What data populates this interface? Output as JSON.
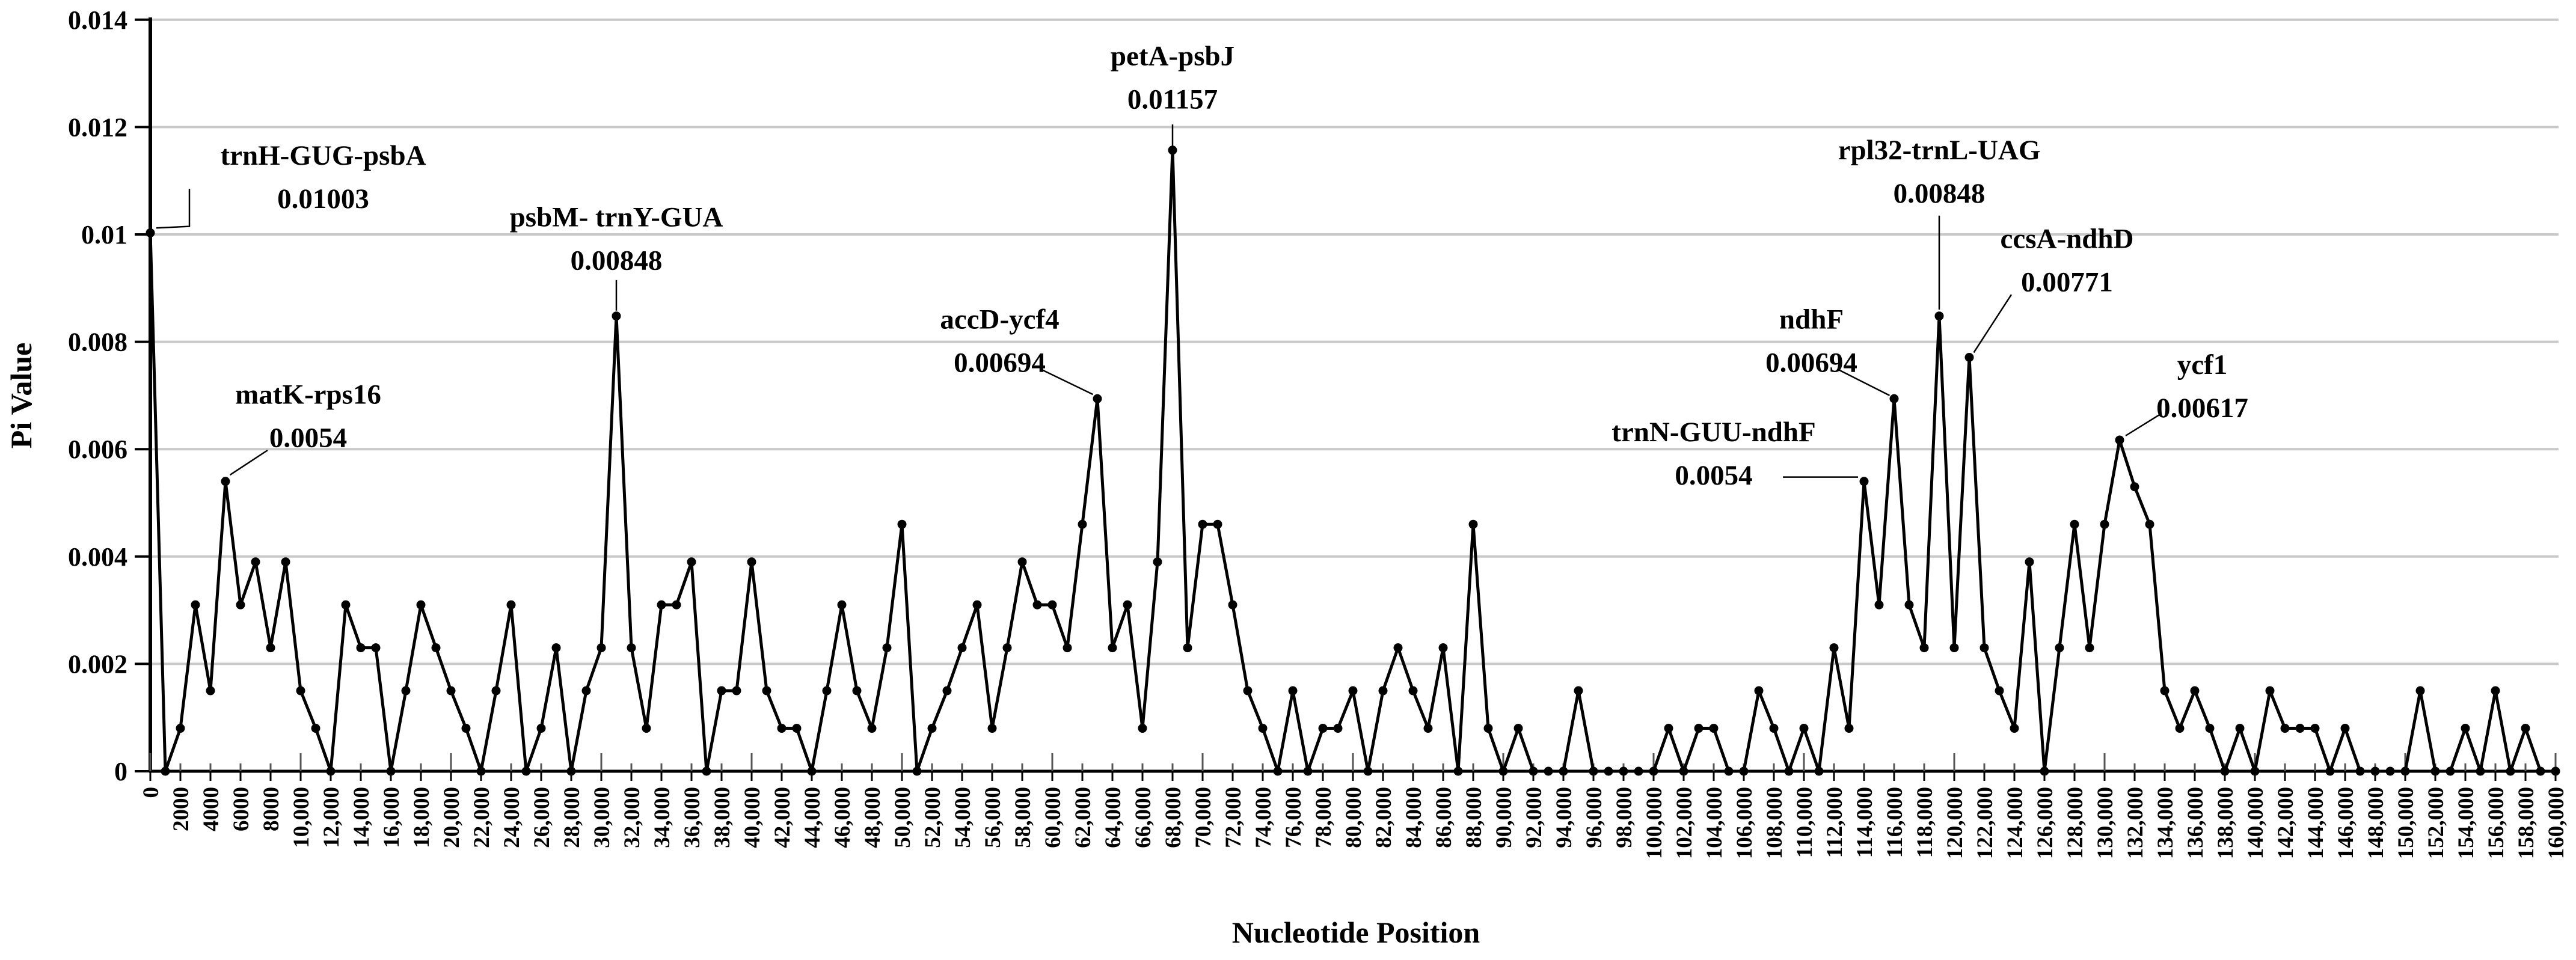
{
  "figure": {
    "x_axis_title": "Nucleotide Position",
    "y_axis_title": "Pi Value"
  },
  "chart_data": {
    "type": "line",
    "series_name": "Pi",
    "title": "",
    "xlabel": "Nucleotide Position",
    "ylabel": "Pi Value",
    "xlim": [
      0,
      160000
    ],
    "ylim": [
      0,
      0.014
    ],
    "grid": "horizontal",
    "legend": "none",
    "line_color": "#000000",
    "grid_color": "#c9c9c9",
    "marker": "circle",
    "x_start": 0,
    "x_step": 1000,
    "x_tick_step": 2000,
    "y_tick_labels": [
      "0",
      "0.002",
      "0.004",
      "0.006",
      "0.008",
      "0.01",
      "0.012",
      "0.014"
    ],
    "y_tick_values": [
      0,
      0.002,
      0.004,
      0.006,
      0.008,
      0.01,
      0.012,
      0.014
    ],
    "x_tick_labels": [
      "0",
      "2000",
      "4000",
      "6000",
      "8000",
      "10,000",
      "12,000",
      "14,000",
      "16,000",
      "18,000",
      "20,000",
      "22,000",
      "24,000",
      "26,000",
      "28,000",
      "30,000",
      "32,000",
      "34,000",
      "36,000",
      "38,000",
      "40,000",
      "42,000",
      "44,000",
      "46,000",
      "48,000",
      "50,000",
      "52,000",
      "54,000",
      "56,000",
      "58,000",
      "60,000",
      "62,000",
      "64,000",
      "66,000",
      "68,000",
      "70,000",
      "72,000",
      "74,000",
      "76,000",
      "78,000",
      "80,000",
      "82,000",
      "84,000",
      "86,000",
      "88,000",
      "90,000",
      "92,000",
      "94,000",
      "96,000",
      "98,000",
      "100,000",
      "102,000",
      "104,000",
      "106,000",
      "108,000",
      "110,000",
      "112,000",
      "114,000",
      "116,000",
      "118,000",
      "120,000",
      "122,000",
      "124,000",
      "126,000",
      "128,000",
      "130,000",
      "132,000",
      "134,000",
      "136,000",
      "138,000",
      "140,000",
      "142,000",
      "144,000",
      "146,000",
      "148,000",
      "150,000",
      "152,000",
      "154,000",
      "156,000",
      "158,000",
      "160,000"
    ],
    "values": [
      0.01003,
      0,
      0.0008,
      0.0031,
      0.0015,
      0.0054,
      0.0031,
      0.0039,
      0.0023,
      0.0039,
      0.0015,
      0.0008,
      0,
      0.0031,
      0.0023,
      0.0023,
      0,
      0.0015,
      0.0031,
      0.0023,
      0.0015,
      0.0008,
      0,
      0.0015,
      0.0031,
      0,
      0.0008,
      0.0023,
      0,
      0.0015,
      0.0023,
      0.00848,
      0.0023,
      0.0008,
      0.0031,
      0.0031,
      0.0039,
      0,
      0.0015,
      0.0015,
      0.0039,
      0.0015,
      0.0008,
      0.0008,
      0,
      0.0015,
      0.0031,
      0.0015,
      0.0008,
      0.0023,
      0.0046,
      0,
      0.0008,
      0.0015,
      0.0023,
      0.0031,
      0.0008,
      0.0023,
      0.0039,
      0.0031,
      0.0031,
      0.0023,
      0.0046,
      0.00694,
      0.0023,
      0.0031,
      0.0008,
      0.0039,
      0.01157,
      0.0023,
      0.0046,
      0.0046,
      0.0031,
      0.0015,
      0.0008,
      0,
      0.0015,
      0,
      0.0008,
      0.0008,
      0.0015,
      0,
      0.0015,
      0.0023,
      0.0015,
      0.0008,
      0.0023,
      0,
      0.0046,
      0.0008,
      0,
      0.0008,
      0,
      0,
      0,
      0.0015,
      0,
      0,
      0,
      0,
      0,
      0.0008,
      0,
      0.0008,
      0.0008,
      0,
      0,
      0.0015,
      0.0008,
      0,
      0.0008,
      0,
      0.0023,
      0.0008,
      0.0054,
      0.0031,
      0.00694,
      0.0031,
      0.0023,
      0.00848,
      0.0023,
      0.00771,
      0.0023,
      0.0015,
      0.0008,
      0.0039,
      0,
      0.0023,
      0.0046,
      0.0023,
      0.0046,
      0.00617,
      0.0053,
      0.0046,
      0.0015,
      0.0008,
      0.0015,
      0.0008,
      0,
      0.0008,
      0,
      0.0015,
      0.0008,
      0.0008,
      0.0008,
      0,
      0.0008,
      0,
      0,
      0,
      0,
      0.0015,
      0,
      0,
      0.0008,
      0,
      0.0015,
      0,
      0.0008,
      0,
      0
    ],
    "annotations": [
      {
        "gene": "trnH-GUG-psbA",
        "value_label": "0.01003",
        "value": 0.01003,
        "x": 0,
        "label_x": 11500,
        "label_y": 0.0113,
        "leader": [
          [
            2600,
            0.01085
          ],
          [
            2600,
            0.01015
          ],
          [
            400,
            0.01012
          ]
        ]
      },
      {
        "gene": "matK-rps16",
        "value_label": "0.0054",
        "value": 0.0054,
        "x": 5000,
        "label_x": 10500,
        "label_y": 0.00685,
        "leader": [
          [
            7800,
            0.00598
          ],
          [
            5300,
            0.00552
          ]
        ]
      },
      {
        "gene": "psbM- trnY-GUA",
        "value_label": "0.00848",
        "value": 0.00848,
        "x": 31000,
        "label_x": 31000,
        "label_y": 0.01015,
        "leader": [
          [
            31000,
            0.00915
          ],
          [
            31000,
            0.00858
          ]
        ]
      },
      {
        "gene": "accD-ycf4",
        "value_label": "0.00694",
        "value": 0.00694,
        "x": 63000,
        "label_x": 56500,
        "label_y": 0.00825,
        "leader": [
          [
            59300,
            0.00748
          ],
          [
            62700,
            0.00702
          ]
        ]
      },
      {
        "gene": "petA-psbJ",
        "value_label": "0.01157",
        "value": 0.01157,
        "x": 68000,
        "label_x": 68000,
        "label_y": 0.01315,
        "leader": [
          [
            68000,
            0.01205
          ],
          [
            68000,
            0.01165
          ]
        ]
      },
      {
        "gene": "trnN-GUU-ndhF",
        "value_label": "0.0054",
        "value": 0.0054,
        "x": 114000,
        "label_x": 104000,
        "label_y": 0.00615,
        "leader": [
          [
            108600,
            0.00548
          ],
          [
            113600,
            0.00548
          ]
        ]
      },
      {
        "gene": "ndhF",
        "value_label": "0.00694",
        "value": 0.00694,
        "x": 116000,
        "label_x": 110500,
        "label_y": 0.00825,
        "leader": [
          [
            112300,
            0.00748
          ],
          [
            115700,
            0.007
          ]
        ]
      },
      {
        "gene": "rpl32-trnL-UAG",
        "value_label": "0.00848",
        "value": 0.00848,
        "x": 119000,
        "label_x": 119000,
        "label_y": 0.0114,
        "leader": [
          [
            119000,
            0.01035
          ],
          [
            119000,
            0.0086
          ]
        ]
      },
      {
        "gene": "ccsA-ndhD",
        "value_label": "0.00771",
        "value": 0.00771,
        "x": 121000,
        "label_x": 127500,
        "label_y": 0.00975,
        "leader": [
          [
            123800,
            0.00888
          ],
          [
            121300,
            0.0078
          ]
        ]
      },
      {
        "gene": "ycf1",
        "value_label": "0.00617",
        "value": 0.00617,
        "x": 131000,
        "label_x": 136500,
        "label_y": 0.0074,
        "leader": [
          [
            133700,
            0.00665
          ],
          [
            131400,
            0.00625
          ]
        ]
      }
    ]
  }
}
